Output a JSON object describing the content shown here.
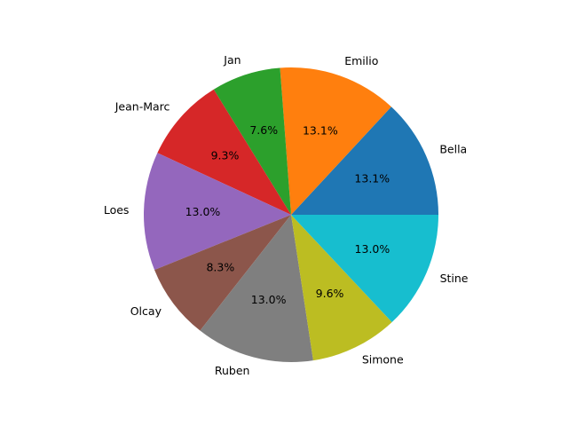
{
  "chart_data": {
    "type": "pie",
    "labels": [
      "Bella",
      "Emilio",
      "Jan",
      "Jean-Marc",
      "Loes",
      "Olcay",
      "Ruben",
      "Simone",
      "Stine"
    ],
    "values": [
      13.1,
      13.1,
      7.6,
      9.3,
      13.0,
      8.3,
      13.0,
      9.6,
      13.0
    ],
    "percent_labels": [
      "13.1%",
      "13.1%",
      "7.6%",
      "9.3%",
      "13.0%",
      "8.3%",
      "13.0%",
      "9.6%",
      "13.0%"
    ],
    "colors": [
      "#1f77b4",
      "#ff7f0e",
      "#2ca02c",
      "#d62728",
      "#9467bd",
      "#8c564b",
      "#7f7f7f",
      "#bcbd22",
      "#17becf"
    ],
    "start_angle_deg": 0,
    "direction": "counterclockwise",
    "legend": "none"
  }
}
